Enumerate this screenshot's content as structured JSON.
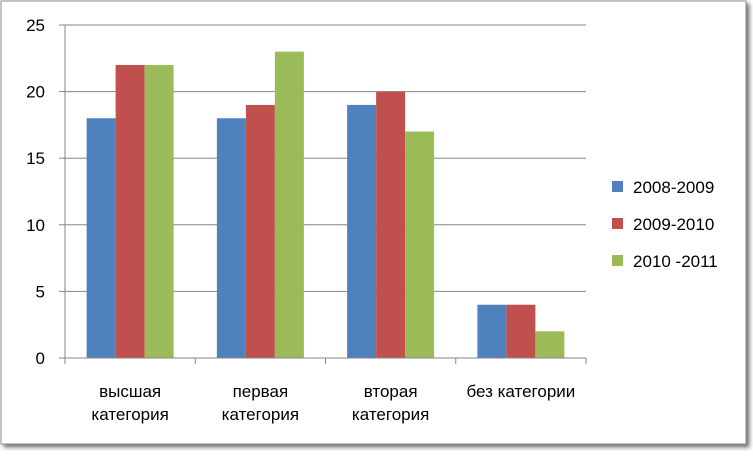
{
  "chart_data": {
    "type": "bar",
    "categories": [
      [
        "высшая",
        "категория"
      ],
      [
        "первая",
        "категория"
      ],
      [
        "вторая",
        "категория"
      ],
      [
        "без категории"
      ]
    ],
    "series": [
      {
        "name": "2008-2009",
        "color": "#4F81BD",
        "values": [
          18,
          18,
          19,
          4
        ]
      },
      {
        "name": "2009-2010",
        "color": "#C0504D",
        "values": [
          22,
          19,
          20,
          4
        ]
      },
      {
        "name": "2010 -2011",
        "color": "#9BBB59",
        "values": [
          22,
          23,
          17,
          2
        ]
      }
    ],
    "yticks": [
      "0",
      "5",
      "10",
      "15",
      "20",
      "25"
    ],
    "ylim": [
      0,
      25
    ],
    "grid": true,
    "legend": "right"
  }
}
